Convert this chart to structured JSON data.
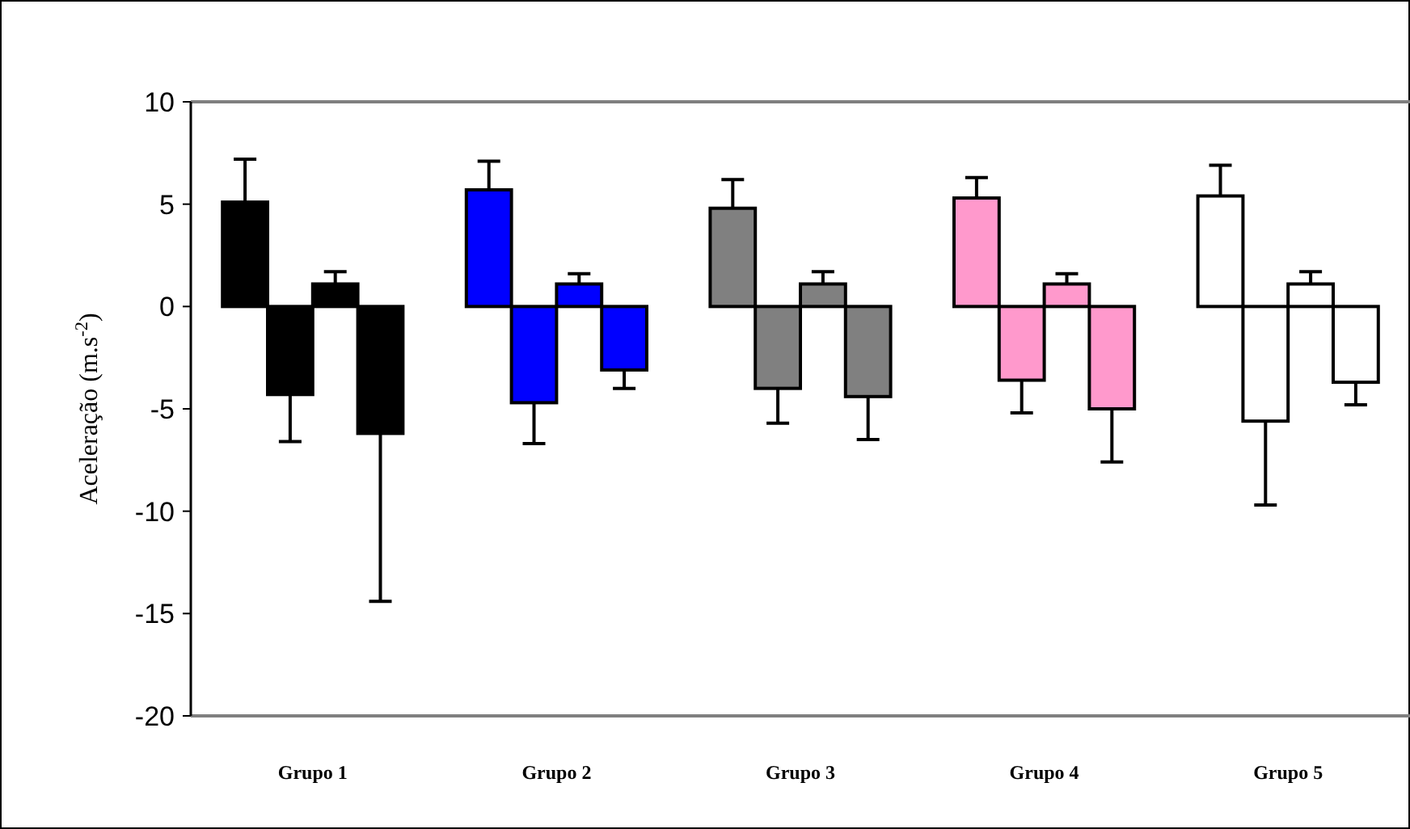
{
  "chart_data": {
    "type": "bar",
    "ylabel": "Aceleração (m.s$^{-2}$)",
    "categories": [
      "Grupo 1",
      "Grupo 2",
      "Grupo 3",
      "Grupo 4",
      "Grupo 5"
    ],
    "series": [
      {
        "colors": [
          "#000000",
          "#0000ff",
          "#808080",
          "#ff99cc",
          "#ffffff"
        ],
        "values": [
          5.1,
          5.7,
          4.8,
          5.3,
          5.4
        ],
        "errors": [
          [
            5.1,
            7.2
          ],
          [
            5.7,
            7.1
          ],
          [
            4.8,
            6.2
          ],
          [
            5.3,
            6.3
          ],
          [
            5.4,
            6.9
          ]
        ]
      },
      {
        "colors": [
          "#000000",
          "#0000ff",
          "#808080",
          "#ff99cc",
          "#ffffff"
        ],
        "values": [
          -4.3,
          -4.7,
          -4.0,
          -3.6,
          -5.6
        ],
        "errors": [
          [
            -6.6,
            -4.3
          ],
          [
            -6.7,
            -4.7
          ],
          [
            -5.7,
            -4.0
          ],
          [
            -5.2,
            -3.6
          ],
          [
            -9.7,
            -5.6
          ]
        ]
      },
      {
        "colors": [
          "#000000",
          "#0000ff",
          "#808080",
          "#ff99cc",
          "#ffffff"
        ],
        "values": [
          1.1,
          1.1,
          1.1,
          1.1,
          1.1
        ],
        "errors": [
          [
            1.1,
            1.7
          ],
          [
            1.1,
            1.6
          ],
          [
            1.1,
            1.7
          ],
          [
            1.1,
            1.6
          ],
          [
            1.1,
            1.7
          ]
        ]
      },
      {
        "colors": [
          "#000000",
          "#0000ff",
          "#808080",
          "#ff99cc",
          "#ffffff"
        ],
        "values": [
          -6.2,
          -3.1,
          -4.4,
          -5.0,
          -3.7
        ],
        "errors": [
          [
            -14.4,
            -6.2
          ],
          [
            -4.0,
            -3.1
          ],
          [
            -6.5,
            -4.4
          ],
          [
            -7.6,
            -5.0
          ],
          [
            -4.8,
            -3.7
          ]
        ]
      }
    ],
    "ylim": [
      -20,
      10
    ],
    "yticks": [
      -20,
      -15,
      -10,
      -5,
      0,
      5,
      10
    ]
  }
}
